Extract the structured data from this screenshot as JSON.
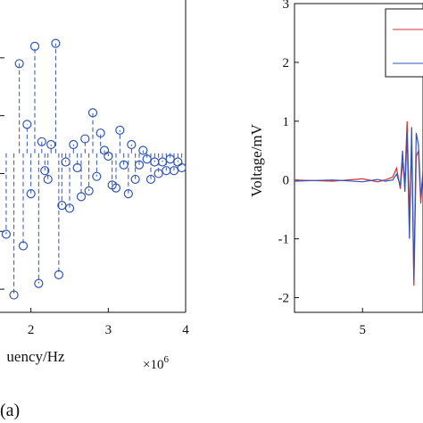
{
  "panel_label": "(a)",
  "chart_data": [
    {
      "type": "scatter",
      "style": "stem",
      "xlabel": "Frequency/Hz",
      "visible_xlabel_fragment": "uency/Hz",
      "x_multiplier": "×10",
      "x_exponent": "6",
      "xlim": [
        1.6,
        4.0
      ],
      "ylim": [
        -2.4,
        3.0
      ],
      "xticks": [
        "2",
        "3",
        "4"
      ],
      "grid": false,
      "color": "#2f55b8",
      "marker": "circle-open",
      "series": [
        {
          "x": [
            1.68,
            1.78,
            1.85,
            1.9,
            1.95,
            2.0,
            2.05,
            2.1,
            2.14,
            2.18,
            2.22,
            2.26,
            2.32,
            2.36,
            2.4,
            2.45,
            2.5,
            2.55,
            2.6,
            2.65,
            2.7,
            2.75,
            2.8,
            2.85,
            2.9,
            2.95,
            3.0,
            3.05,
            3.1,
            3.15,
            3.2,
            3.26,
            3.3,
            3.35,
            3.4,
            3.45,
            3.5,
            3.55,
            3.6,
            3.65,
            3.7,
            3.75,
            3.8,
            3.85,
            3.9,
            3.95
          ],
          "y": [
            -1.05,
            -2.1,
            1.9,
            -1.25,
            0.85,
            -0.35,
            2.2,
            -1.9,
            0.55,
            0.05,
            -0.1,
            0.5,
            2.25,
            -1.75,
            -0.55,
            0.2,
            -0.6,
            0.5,
            0.1,
            -0.4,
            0.6,
            -0.3,
            1.05,
            -0.05,
            0.7,
            0.4,
            0.3,
            -0.2,
            -0.25,
            0.75,
            0.15,
            -0.35,
            0.5,
            -0.1,
            0.15,
            0.4,
            0.25,
            -0.1,
            0.2,
            0.0,
            0.2,
            0.05,
            0.25,
            0.05,
            0.2,
            0.1
          ]
        }
      ]
    },
    {
      "type": "line",
      "ylabel": "Voltage/mV",
      "xlim": [
        4.1,
        5.8
      ],
      "ylim": [
        -2.25,
        3.0
      ],
      "xticks": [
        "5"
      ],
      "yticks": [
        "3",
        "2",
        "1",
        "0",
        "-1",
        "-2"
      ],
      "grid": false,
      "legend_position": "top-right",
      "series": [
        {
          "color": "#d23030",
          "x": [
            4.1,
            4.6,
            5.0,
            5.2,
            5.3,
            5.4,
            5.45,
            5.5,
            5.53,
            5.56,
            5.59,
            5.62,
            5.65,
            5.68,
            5.71,
            5.74,
            5.77,
            5.8
          ],
          "y": [
            0.0,
            -0.02,
            0.02,
            -0.03,
            0.0,
            0.05,
            0.2,
            -0.15,
            0.3,
            0.0,
            1.0,
            -0.6,
            0.6,
            -1.8,
            0.4,
            0.5,
            -0.4,
            0.2
          ]
        },
        {
          "color": "#2f55b8",
          "x": [
            4.1,
            4.6,
            5.0,
            5.2,
            5.3,
            5.4,
            5.45,
            5.5,
            5.53,
            5.56,
            5.59,
            5.62,
            5.65,
            5.68,
            5.71,
            5.74,
            5.77,
            5.8
          ],
          "y": [
            -0.02,
            0.0,
            -0.03,
            0.01,
            -0.02,
            0.0,
            0.1,
            -0.1,
            0.5,
            -0.2,
            0.8,
            -1.0,
            0.9,
            -1.7,
            0.8,
            0.6,
            -0.3,
            0.1
          ]
        }
      ]
    }
  ]
}
